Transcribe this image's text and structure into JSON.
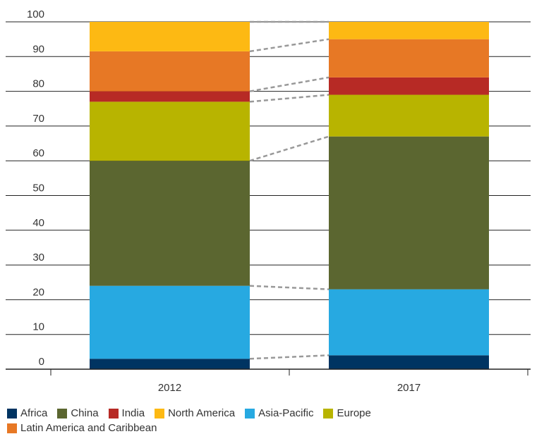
{
  "chart_data": {
    "type": "bar",
    "stacked": true,
    "categories": [
      "2012",
      "2017"
    ],
    "ylim": [
      0,
      100
    ],
    "yticks": [
      0,
      10,
      20,
      30,
      40,
      50,
      60,
      70,
      80,
      90,
      100
    ],
    "grid": true,
    "legend_position": "bottom",
    "connectors": "dashed lines between segment boundaries",
    "series": [
      {
        "name": "Africa",
        "color": "#003462",
        "values": [
          3,
          4
        ]
      },
      {
        "name": "Asia-Pacific",
        "color": "#27a9e1",
        "values": [
          21,
          19
        ]
      },
      {
        "name": "China",
        "color": "#5b6630",
        "values": [
          36,
          44
        ]
      },
      {
        "name": "Europe",
        "color": "#b8b400",
        "values": [
          17,
          12
        ]
      },
      {
        "name": "India",
        "color": "#b72a25",
        "values": [
          3,
          5
        ]
      },
      {
        "name": "Latin America and Caribbean",
        "color": "#e77825",
        "values": [
          11.5,
          11
        ]
      },
      {
        "name": "North America",
        "color": "#fdb913",
        "values": [
          8.5,
          5
        ]
      }
    ],
    "legend_order": [
      "Africa",
      "China",
      "India",
      "North America",
      "Asia-Pacific",
      "Europe",
      "Latin America and Caribbean"
    ]
  }
}
